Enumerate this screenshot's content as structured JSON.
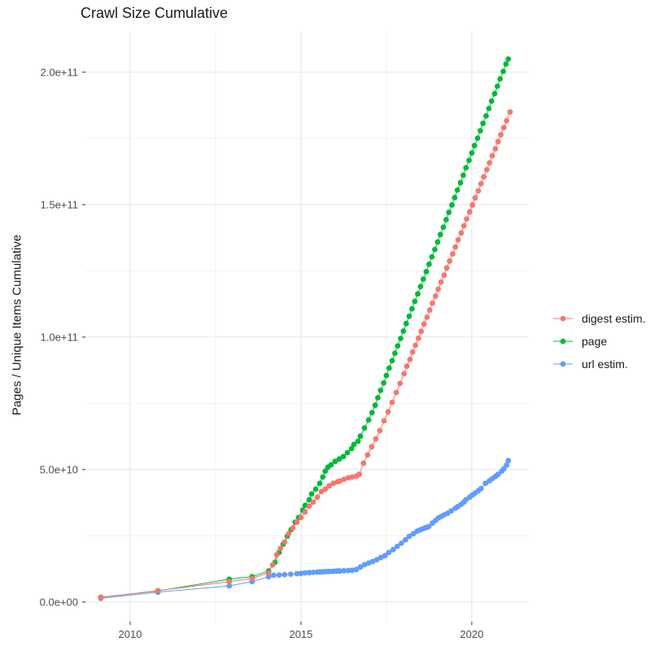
{
  "colors": {
    "background": "#ffffff",
    "grid_major": "#e4e4e4",
    "grid_minor": "#efefef",
    "tick_mark": "#333333",
    "tick_text": "#4d4d4d",
    "title_text": "#1a1a1a"
  },
  "chart_data": {
    "type": "line",
    "title": "Crawl Size Cumulative",
    "xlabel": "",
    "ylabel": "Pages / Unique Items Cumulative",
    "value_unit": "points are [decimal_year, value_in_billions_1e9]",
    "grid": true,
    "legend_position": "right",
    "axes": {
      "x": {
        "min": 2008.69,
        "max": 2021.67,
        "major_ticks": [
          {
            "v": 2010,
            "label": "2010"
          },
          {
            "v": 2015,
            "label": "2015"
          },
          {
            "v": 2020,
            "label": "2020"
          }
        ],
        "minor_ticks": [
          2012.5,
          2017.5
        ]
      },
      "y": {
        "min": -7.4,
        "max": 215.6,
        "major_ticks": [
          {
            "v": 0,
            "label": "0.0e+00"
          },
          {
            "v": 50,
            "label": "5.0e+10"
          },
          {
            "v": 100,
            "label": "1.0e+11"
          },
          {
            "v": 150,
            "label": "1.5e+11"
          },
          {
            "v": 200,
            "label": "2.0e+11"
          }
        ],
        "minor_ticks": [
          25,
          75,
          125,
          175
        ]
      }
    },
    "series": [
      {
        "id": "digest",
        "name": "digest estim.",
        "color": "#F8766D",
        "points": [
          [
            2009.14,
            1.7
          ],
          [
            2010.81,
            4.3
          ],
          [
            2012.9,
            7.7
          ],
          [
            2013.57,
            8.9
          ],
          [
            2014.05,
            11.0
          ],
          [
            2014.17,
            14.0
          ],
          [
            2014.29,
            17.8
          ],
          [
            2014.4,
            20.2
          ],
          [
            2014.52,
            22.7
          ],
          [
            2014.64,
            25.8
          ],
          [
            2014.76,
            27.9
          ],
          [
            2014.88,
            30.1
          ],
          [
            2015.0,
            31.9
          ],
          [
            2015.12,
            34.0
          ],
          [
            2015.24,
            36.2
          ],
          [
            2015.36,
            37.7
          ],
          [
            2015.48,
            39.6
          ],
          [
            2015.6,
            41.7
          ],
          [
            2015.71,
            42.6
          ],
          [
            2015.83,
            43.9
          ],
          [
            2015.95,
            44.8
          ],
          [
            2016.07,
            45.4
          ],
          [
            2016.14,
            45.7
          ],
          [
            2016.26,
            46.3
          ],
          [
            2016.38,
            46.9
          ],
          [
            2016.5,
            47.2
          ],
          [
            2016.62,
            47.5
          ],
          [
            2016.71,
            48.2
          ],
          [
            2016.83,
            52.4
          ],
          [
            2016.95,
            55.5
          ],
          [
            2017.07,
            58.6
          ],
          [
            2017.19,
            61.6
          ],
          [
            2017.31,
            64.7
          ],
          [
            2017.43,
            68.4
          ],
          [
            2017.55,
            71.8
          ],
          [
            2017.67,
            75.4
          ],
          [
            2017.79,
            79.1
          ],
          [
            2017.9,
            82.5
          ],
          [
            2018.02,
            86.2
          ],
          [
            2018.1,
            89.0
          ],
          [
            2018.19,
            91.6
          ],
          [
            2018.27,
            94.3
          ],
          [
            2018.35,
            96.9
          ],
          [
            2018.44,
            99.6
          ],
          [
            2018.52,
            102.2
          ],
          [
            2018.6,
            104.9
          ],
          [
            2018.69,
            107.5
          ],
          [
            2018.77,
            110.2
          ],
          [
            2018.85,
            112.8
          ],
          [
            2018.94,
            115.5
          ],
          [
            2019.02,
            118.1
          ],
          [
            2019.1,
            120.8
          ],
          [
            2019.19,
            123.4
          ],
          [
            2019.27,
            126.1
          ],
          [
            2019.35,
            128.7
          ],
          [
            2019.44,
            131.4
          ],
          [
            2019.52,
            134.0
          ],
          [
            2019.6,
            136.7
          ],
          [
            2019.69,
            139.3
          ],
          [
            2019.77,
            142.0
          ],
          [
            2019.85,
            144.6
          ],
          [
            2019.94,
            147.3
          ],
          [
            2020.02,
            149.9
          ],
          [
            2020.1,
            152.6
          ],
          [
            2020.19,
            155.2
          ],
          [
            2020.27,
            157.9
          ],
          [
            2020.35,
            160.5
          ],
          [
            2020.44,
            163.2
          ],
          [
            2020.52,
            165.8
          ],
          [
            2020.6,
            168.5
          ],
          [
            2020.69,
            171.1
          ],
          [
            2020.77,
            173.8
          ],
          [
            2020.85,
            176.4
          ],
          [
            2020.94,
            179.1
          ],
          [
            2021.02,
            181.7
          ],
          [
            2021.12,
            185.0
          ]
        ]
      },
      {
        "id": "page",
        "name": "page",
        "color": "#00BA38",
        "points": [
          [
            2009.14,
            1.8
          ],
          [
            2010.81,
            4.2
          ],
          [
            2012.9,
            8.6
          ],
          [
            2013.57,
            9.6
          ],
          [
            2014.05,
            11.7
          ],
          [
            2014.24,
            15.0
          ],
          [
            2014.36,
            18.7
          ],
          [
            2014.48,
            21.8
          ],
          [
            2014.6,
            24.8
          ],
          [
            2014.71,
            27.3
          ],
          [
            2014.83,
            30.1
          ],
          [
            2014.93,
            31.9
          ],
          [
            2015.05,
            34.7
          ],
          [
            2015.12,
            36.5
          ],
          [
            2015.24,
            38.6
          ],
          [
            2015.31,
            40.8
          ],
          [
            2015.43,
            42.6
          ],
          [
            2015.55,
            44.8
          ],
          [
            2015.64,
            47.2
          ],
          [
            2015.71,
            49.4
          ],
          [
            2015.79,
            50.9
          ],
          [
            2015.88,
            51.8
          ],
          [
            2016.0,
            53.1
          ],
          [
            2016.12,
            54.0
          ],
          [
            2016.24,
            54.9
          ],
          [
            2016.36,
            56.4
          ],
          [
            2016.48,
            57.9
          ],
          [
            2016.55,
            59.5
          ],
          [
            2016.67,
            60.7
          ],
          [
            2016.74,
            62.6
          ],
          [
            2016.86,
            65.7
          ],
          [
            2016.98,
            68.7
          ],
          [
            2017.08,
            71.5
          ],
          [
            2017.17,
            74.3
          ],
          [
            2017.25,
            77.1
          ],
          [
            2017.33,
            79.9
          ],
          [
            2017.42,
            82.7
          ],
          [
            2017.5,
            85.5
          ],
          [
            2017.58,
            88.3
          ],
          [
            2017.67,
            91.1
          ],
          [
            2017.75,
            93.9
          ],
          [
            2017.83,
            96.7
          ],
          [
            2017.92,
            99.5
          ],
          [
            2018.0,
            102.3
          ],
          [
            2018.08,
            105.1
          ],
          [
            2018.17,
            107.9
          ],
          [
            2018.25,
            110.7
          ],
          [
            2018.33,
            113.5
          ],
          [
            2018.42,
            116.3
          ],
          [
            2018.5,
            119.1
          ],
          [
            2018.58,
            121.9
          ],
          [
            2018.67,
            124.7
          ],
          [
            2018.75,
            127.5
          ],
          [
            2018.83,
            130.3
          ],
          [
            2018.92,
            133.1
          ],
          [
            2019.0,
            135.9
          ],
          [
            2019.08,
            138.7
          ],
          [
            2019.17,
            141.5
          ],
          [
            2019.25,
            144.3
          ],
          [
            2019.33,
            147.1
          ],
          [
            2019.42,
            149.9
          ],
          [
            2019.5,
            152.7
          ],
          [
            2019.58,
            155.5
          ],
          [
            2019.67,
            158.3
          ],
          [
            2019.75,
            161.1
          ],
          [
            2019.83,
            163.9
          ],
          [
            2019.92,
            166.7
          ],
          [
            2020.0,
            169.5
          ],
          [
            2020.08,
            172.3
          ],
          [
            2020.17,
            175.1
          ],
          [
            2020.25,
            177.9
          ],
          [
            2020.33,
            180.7
          ],
          [
            2020.42,
            183.5
          ],
          [
            2020.5,
            186.3
          ],
          [
            2020.58,
            189.1
          ],
          [
            2020.67,
            191.9
          ],
          [
            2020.75,
            194.7
          ],
          [
            2020.83,
            197.5
          ],
          [
            2020.92,
            200.3
          ],
          [
            2021.0,
            203.1
          ],
          [
            2021.07,
            205.0
          ]
        ]
      },
      {
        "id": "url",
        "name": "url estim.",
        "color": "#619CFF",
        "points": [
          [
            2009.14,
            1.4
          ],
          [
            2010.81,
            3.7
          ],
          [
            2012.9,
            6.1
          ],
          [
            2013.57,
            7.7
          ],
          [
            2014.05,
            9.5
          ],
          [
            2014.2,
            10.1
          ],
          [
            2014.36,
            10.2
          ],
          [
            2014.52,
            10.35
          ],
          [
            2014.7,
            10.5
          ],
          [
            2014.88,
            10.7
          ],
          [
            2015.0,
            10.8
          ],
          [
            2015.12,
            11.0
          ],
          [
            2015.24,
            11.1
          ],
          [
            2015.36,
            11.2
          ],
          [
            2015.48,
            11.3
          ],
          [
            2015.55,
            11.35
          ],
          [
            2015.63,
            11.4
          ],
          [
            2015.71,
            11.45
          ],
          [
            2015.79,
            11.5
          ],
          [
            2015.83,
            11.55
          ],
          [
            2015.92,
            11.6
          ],
          [
            2016.0,
            11.65
          ],
          [
            2016.07,
            11.7
          ],
          [
            2016.14,
            11.72
          ],
          [
            2016.26,
            11.8
          ],
          [
            2016.38,
            11.9
          ],
          [
            2016.5,
            12.0
          ],
          [
            2016.62,
            12.3
          ],
          [
            2016.74,
            13.2
          ],
          [
            2016.86,
            14.1
          ],
          [
            2016.98,
            14.7
          ],
          [
            2017.1,
            15.3
          ],
          [
            2017.22,
            16.0
          ],
          [
            2017.34,
            16.8
          ],
          [
            2017.46,
            17.5
          ],
          [
            2017.57,
            18.7
          ],
          [
            2017.7,
            19.8
          ],
          [
            2017.82,
            21.0
          ],
          [
            2017.94,
            22.2
          ],
          [
            2018.06,
            23.5
          ],
          [
            2018.17,
            24.8
          ],
          [
            2018.29,
            25.8
          ],
          [
            2018.4,
            26.7
          ],
          [
            2018.48,
            27.2
          ],
          [
            2018.56,
            27.6
          ],
          [
            2018.63,
            28.0
          ],
          [
            2018.69,
            28.2
          ],
          [
            2018.74,
            28.5
          ],
          [
            2018.85,
            29.8
          ],
          [
            2018.94,
            30.8
          ],
          [
            2019.02,
            31.7
          ],
          [
            2019.1,
            32.3
          ],
          [
            2019.19,
            32.9
          ],
          [
            2019.29,
            33.5
          ],
          [
            2019.4,
            34.4
          ],
          [
            2019.52,
            35.4
          ],
          [
            2019.6,
            36.1
          ],
          [
            2019.69,
            36.9
          ],
          [
            2019.77,
            37.7
          ],
          [
            2019.83,
            38.6
          ],
          [
            2019.94,
            39.6
          ],
          [
            2020.02,
            40.4
          ],
          [
            2020.1,
            41.2
          ],
          [
            2020.19,
            42.0
          ],
          [
            2020.27,
            42.8
          ],
          [
            2020.4,
            44.8
          ],
          [
            2020.52,
            45.8
          ],
          [
            2020.6,
            46.6
          ],
          [
            2020.69,
            47.4
          ],
          [
            2020.77,
            48.2
          ],
          [
            2020.88,
            49.4
          ],
          [
            2020.94,
            50.3
          ],
          [
            2021.02,
            51.7
          ],
          [
            2021.07,
            53.4
          ]
        ]
      }
    ]
  }
}
